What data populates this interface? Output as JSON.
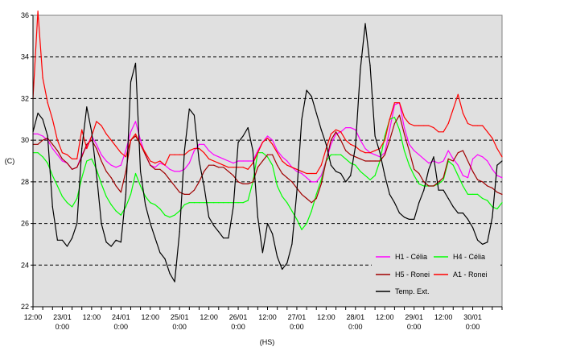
{
  "chart_data": {
    "type": "line",
    "title": "",
    "xlabel": "(HS)",
    "ylabel": "(C)",
    "ylim": [
      22,
      36
    ],
    "xlim": [
      0,
      192
    ],
    "x_unit": "hours since 22/01 12:00",
    "grid": {
      "horizontal_dashed": true
    },
    "plot_background": "#e0e0e0",
    "y_ticks": [
      "22",
      "24",
      "26",
      "28",
      "30",
      "32",
      "34",
      "36"
    ],
    "x_tick_labels": [
      {
        "x": 0,
        "line1": "12:00",
        "line2": ""
      },
      {
        "x": 12,
        "line1": "23/01",
        "line2": "0:00"
      },
      {
        "x": 24,
        "line1": "12:00",
        "line2": ""
      },
      {
        "x": 36,
        "line1": "24/01",
        "line2": "0:00"
      },
      {
        "x": 48,
        "line1": "12:00",
        "line2": ""
      },
      {
        "x": 60,
        "line1": "25/01",
        "line2": "0:00"
      },
      {
        "x": 72,
        "line1": "12:00",
        "line2": ""
      },
      {
        "x": 84,
        "line1": "26/01",
        "line2": "0:00"
      },
      {
        "x": 96,
        "line1": "12:00",
        "line2": ""
      },
      {
        "x": 108,
        "line1": "27/01",
        "line2": "0:00"
      },
      {
        "x": 120,
        "line1": "12:00",
        "line2": ""
      },
      {
        "x": 132,
        "line1": "28/01",
        "line2": "0:00"
      },
      {
        "x": 144,
        "line1": "12:00",
        "line2": ""
      },
      {
        "x": 156,
        "line1": "29/01",
        "line2": "0:00"
      },
      {
        "x": 168,
        "line1": "12:00",
        "line2": ""
      },
      {
        "x": 180,
        "line1": "30/01",
        "line2": "0:00"
      }
    ],
    "legend_position": "bottom-right inside plot",
    "x": [
      0,
      2,
      4,
      6,
      8,
      10,
      12,
      14,
      16,
      18,
      20,
      22,
      24,
      26,
      28,
      30,
      32,
      34,
      36,
      38,
      40,
      42,
      44,
      46,
      48,
      50,
      52,
      54,
      56,
      58,
      60,
      62,
      64,
      66,
      68,
      70,
      72,
      74,
      76,
      78,
      80,
      82,
      84,
      86,
      88,
      90,
      92,
      94,
      96,
      98,
      100,
      102,
      104,
      106,
      108,
      110,
      112,
      114,
      116,
      118,
      120,
      122,
      124,
      126,
      128,
      130,
      132,
      134,
      136,
      138,
      140,
      142,
      144,
      146,
      148,
      150,
      152,
      154,
      156,
      158,
      160,
      162,
      164,
      166,
      168,
      170,
      172,
      174,
      176,
      178,
      180,
      182,
      184,
      186,
      188,
      190,
      192
    ],
    "series": [
      {
        "name": "H1 - Célia",
        "color": "#ff00ff",
        "values": [
          30.3,
          30.3,
          30.2,
          30.0,
          29.6,
          29.3,
          29.0,
          28.9,
          28.6,
          28.7,
          29.3,
          29.7,
          30.2,
          29.8,
          29.3,
          29.0,
          28.8,
          28.7,
          28.8,
          29.5,
          30.4,
          30.9,
          30.0,
          29.3,
          28.8,
          28.7,
          28.9,
          28.8,
          28.6,
          28.5,
          28.5,
          28.6,
          28.9,
          29.5,
          29.8,
          29.8,
          29.5,
          29.3,
          29.2,
          29.1,
          29.0,
          28.9,
          29.0,
          29.0,
          29.0,
          29.0,
          29.5,
          29.9,
          30.2,
          30.0,
          29.5,
          29.2,
          29.0,
          28.7,
          28.5,
          28.4,
          28.2,
          28.0,
          28.0,
          28.3,
          29.0,
          29.8,
          30.3,
          30.4,
          30.6,
          30.6,
          30.5,
          30.0,
          29.6,
          29.4,
          29.3,
          29.2,
          29.4,
          30.5,
          31.7,
          31.8,
          30.6,
          29.8,
          29.5,
          29.3,
          29.1,
          28.9,
          29.0,
          28.9,
          29.0,
          29.5,
          29.1,
          28.8,
          28.3,
          28.2,
          29.1,
          29.3,
          29.2,
          29.0,
          28.6,
          28.3,
          28.2
        ]
      },
      {
        "name": "H4 - Célia",
        "color": "#00ff00",
        "values": [
          29.4,
          29.4,
          29.2,
          28.9,
          28.3,
          27.8,
          27.3,
          27.0,
          26.8,
          27.2,
          28.2,
          29.0,
          29.1,
          28.6,
          27.9,
          27.3,
          26.9,
          26.6,
          26.4,
          26.8,
          27.4,
          28.4,
          27.8,
          27.3,
          27.0,
          26.9,
          26.7,
          26.4,
          26.3,
          26.4,
          26.6,
          26.9,
          27.0,
          27.0,
          27.0,
          27.0,
          27.0,
          27.0,
          27.0,
          27.0,
          27.0,
          27.0,
          27.0,
          27.0,
          27.1,
          28.0,
          29.4,
          29.4,
          29.2,
          28.8,
          27.8,
          27.3,
          27.0,
          26.6,
          26.2,
          25.7,
          26.0,
          26.6,
          27.4,
          28.1,
          29.0,
          29.3,
          29.3,
          29.3,
          29.1,
          28.9,
          28.8,
          28.5,
          28.3,
          28.1,
          28.3,
          29.0,
          30.2,
          31.0,
          31.1,
          30.5,
          29.5,
          28.8,
          28.3,
          27.9,
          27.8,
          27.8,
          27.8,
          27.9,
          28.1,
          29.0,
          28.8,
          28.3,
          27.8,
          27.4,
          27.4,
          27.4,
          27.2,
          27.1,
          26.8,
          26.7,
          27.0
        ]
      },
      {
        "name": "H5 - Ronei",
        "color": "#a00000",
        "values": [
          29.8,
          29.8,
          30.0,
          30.1,
          29.8,
          29.5,
          29.1,
          28.9,
          28.6,
          28.7,
          29.2,
          29.8,
          30.0,
          29.6,
          29.0,
          28.5,
          28.2,
          27.8,
          27.5,
          28.5,
          30.0,
          30.2,
          29.8,
          29.3,
          28.8,
          28.6,
          28.6,
          28.4,
          28.1,
          27.8,
          27.5,
          27.4,
          27.4,
          27.6,
          28.0,
          28.5,
          28.8,
          28.8,
          28.7,
          28.7,
          28.5,
          28.3,
          28.0,
          27.9,
          27.9,
          28.0,
          28.7,
          29.0,
          29.3,
          29.3,
          28.8,
          28.4,
          28.2,
          28.0,
          27.7,
          27.4,
          27.2,
          27.0,
          27.2,
          27.9,
          29.0,
          30.0,
          30.4,
          30.0,
          29.5,
          29.3,
          29.2,
          29.1,
          29.0,
          29.0,
          29.0,
          29.0,
          29.3,
          30.0,
          30.8,
          31.2,
          30.3,
          29.5,
          28.6,
          28.4,
          28.0,
          27.8,
          27.8,
          28.0,
          28.2,
          29.1,
          29.0,
          29.4,
          29.5,
          29.0,
          28.5,
          28.1,
          28.0,
          27.8,
          27.7,
          27.5,
          27.4
        ]
      },
      {
        "name": "A1 - Ronei",
        "color": "#ff0000",
        "values": [
          32.0,
          36.2,
          33.0,
          31.8,
          31.0,
          30.0,
          29.4,
          29.3,
          29.1,
          29.1,
          30.5,
          29.6,
          30.2,
          30.9,
          30.7,
          30.3,
          30.0,
          29.7,
          29.4,
          29.2,
          30.0,
          30.3,
          29.8,
          29.4,
          29.0,
          28.9,
          29.0,
          28.8,
          29.3,
          29.3,
          29.3,
          29.3,
          29.5,
          29.6,
          29.6,
          29.4,
          29.1,
          29.0,
          28.9,
          28.8,
          28.7,
          28.7,
          28.7,
          28.7,
          28.6,
          28.9,
          29.4,
          29.9,
          30.1,
          29.8,
          29.4,
          29.0,
          28.8,
          28.7,
          28.6,
          28.5,
          28.4,
          28.4,
          28.4,
          28.8,
          29.6,
          30.3,
          30.5,
          30.4,
          30.0,
          29.8,
          29.7,
          29.5,
          29.4,
          29.4,
          29.5,
          29.6,
          30.0,
          31.0,
          31.8,
          31.8,
          31.1,
          30.8,
          30.7,
          30.7,
          30.7,
          30.7,
          30.6,
          30.4,
          30.4,
          30.8,
          31.5,
          32.2,
          31.3,
          30.8,
          30.7,
          30.7,
          30.7,
          30.4,
          30.1,
          29.6,
          29.2
        ]
      },
      {
        "name": "Temp. Ext.",
        "color": "#000000",
        "values": [
          30.4,
          31.3,
          31.0,
          30.2,
          26.8,
          25.2,
          25.2,
          24.9,
          25.3,
          26.0,
          29.6,
          31.6,
          30.4,
          28.4,
          26.0,
          25.1,
          24.9,
          25.2,
          25.1,
          27.4,
          32.8,
          33.7,
          28.5,
          26.9,
          26.0,
          25.3,
          24.6,
          24.3,
          23.6,
          23.2,
          25.6,
          29.5,
          31.5,
          31.2,
          29.0,
          27.8,
          26.3,
          25.9,
          25.6,
          25.3,
          25.3,
          26.8,
          29.9,
          30.2,
          30.6,
          29.5,
          26.3,
          24.6,
          26.0,
          25.5,
          24.4,
          23.8,
          24.1,
          25.0,
          27.5,
          31.0,
          32.4,
          32.1,
          31.3,
          30.5,
          29.8,
          28.8,
          28.5,
          28.4,
          28.0,
          28.3,
          29.7,
          33.4,
          35.6,
          33.6,
          30.2,
          29.4,
          28.3,
          27.4,
          27.0,
          26.5,
          26.3,
          26.2,
          26.2,
          27.0,
          27.6,
          28.6,
          29.2,
          27.6,
          27.6,
          27.2,
          26.8,
          26.5,
          26.5,
          26.2,
          25.8,
          25.2,
          25.0,
          25.1,
          26.3,
          28.8,
          29.0
        ]
      }
    ]
  }
}
